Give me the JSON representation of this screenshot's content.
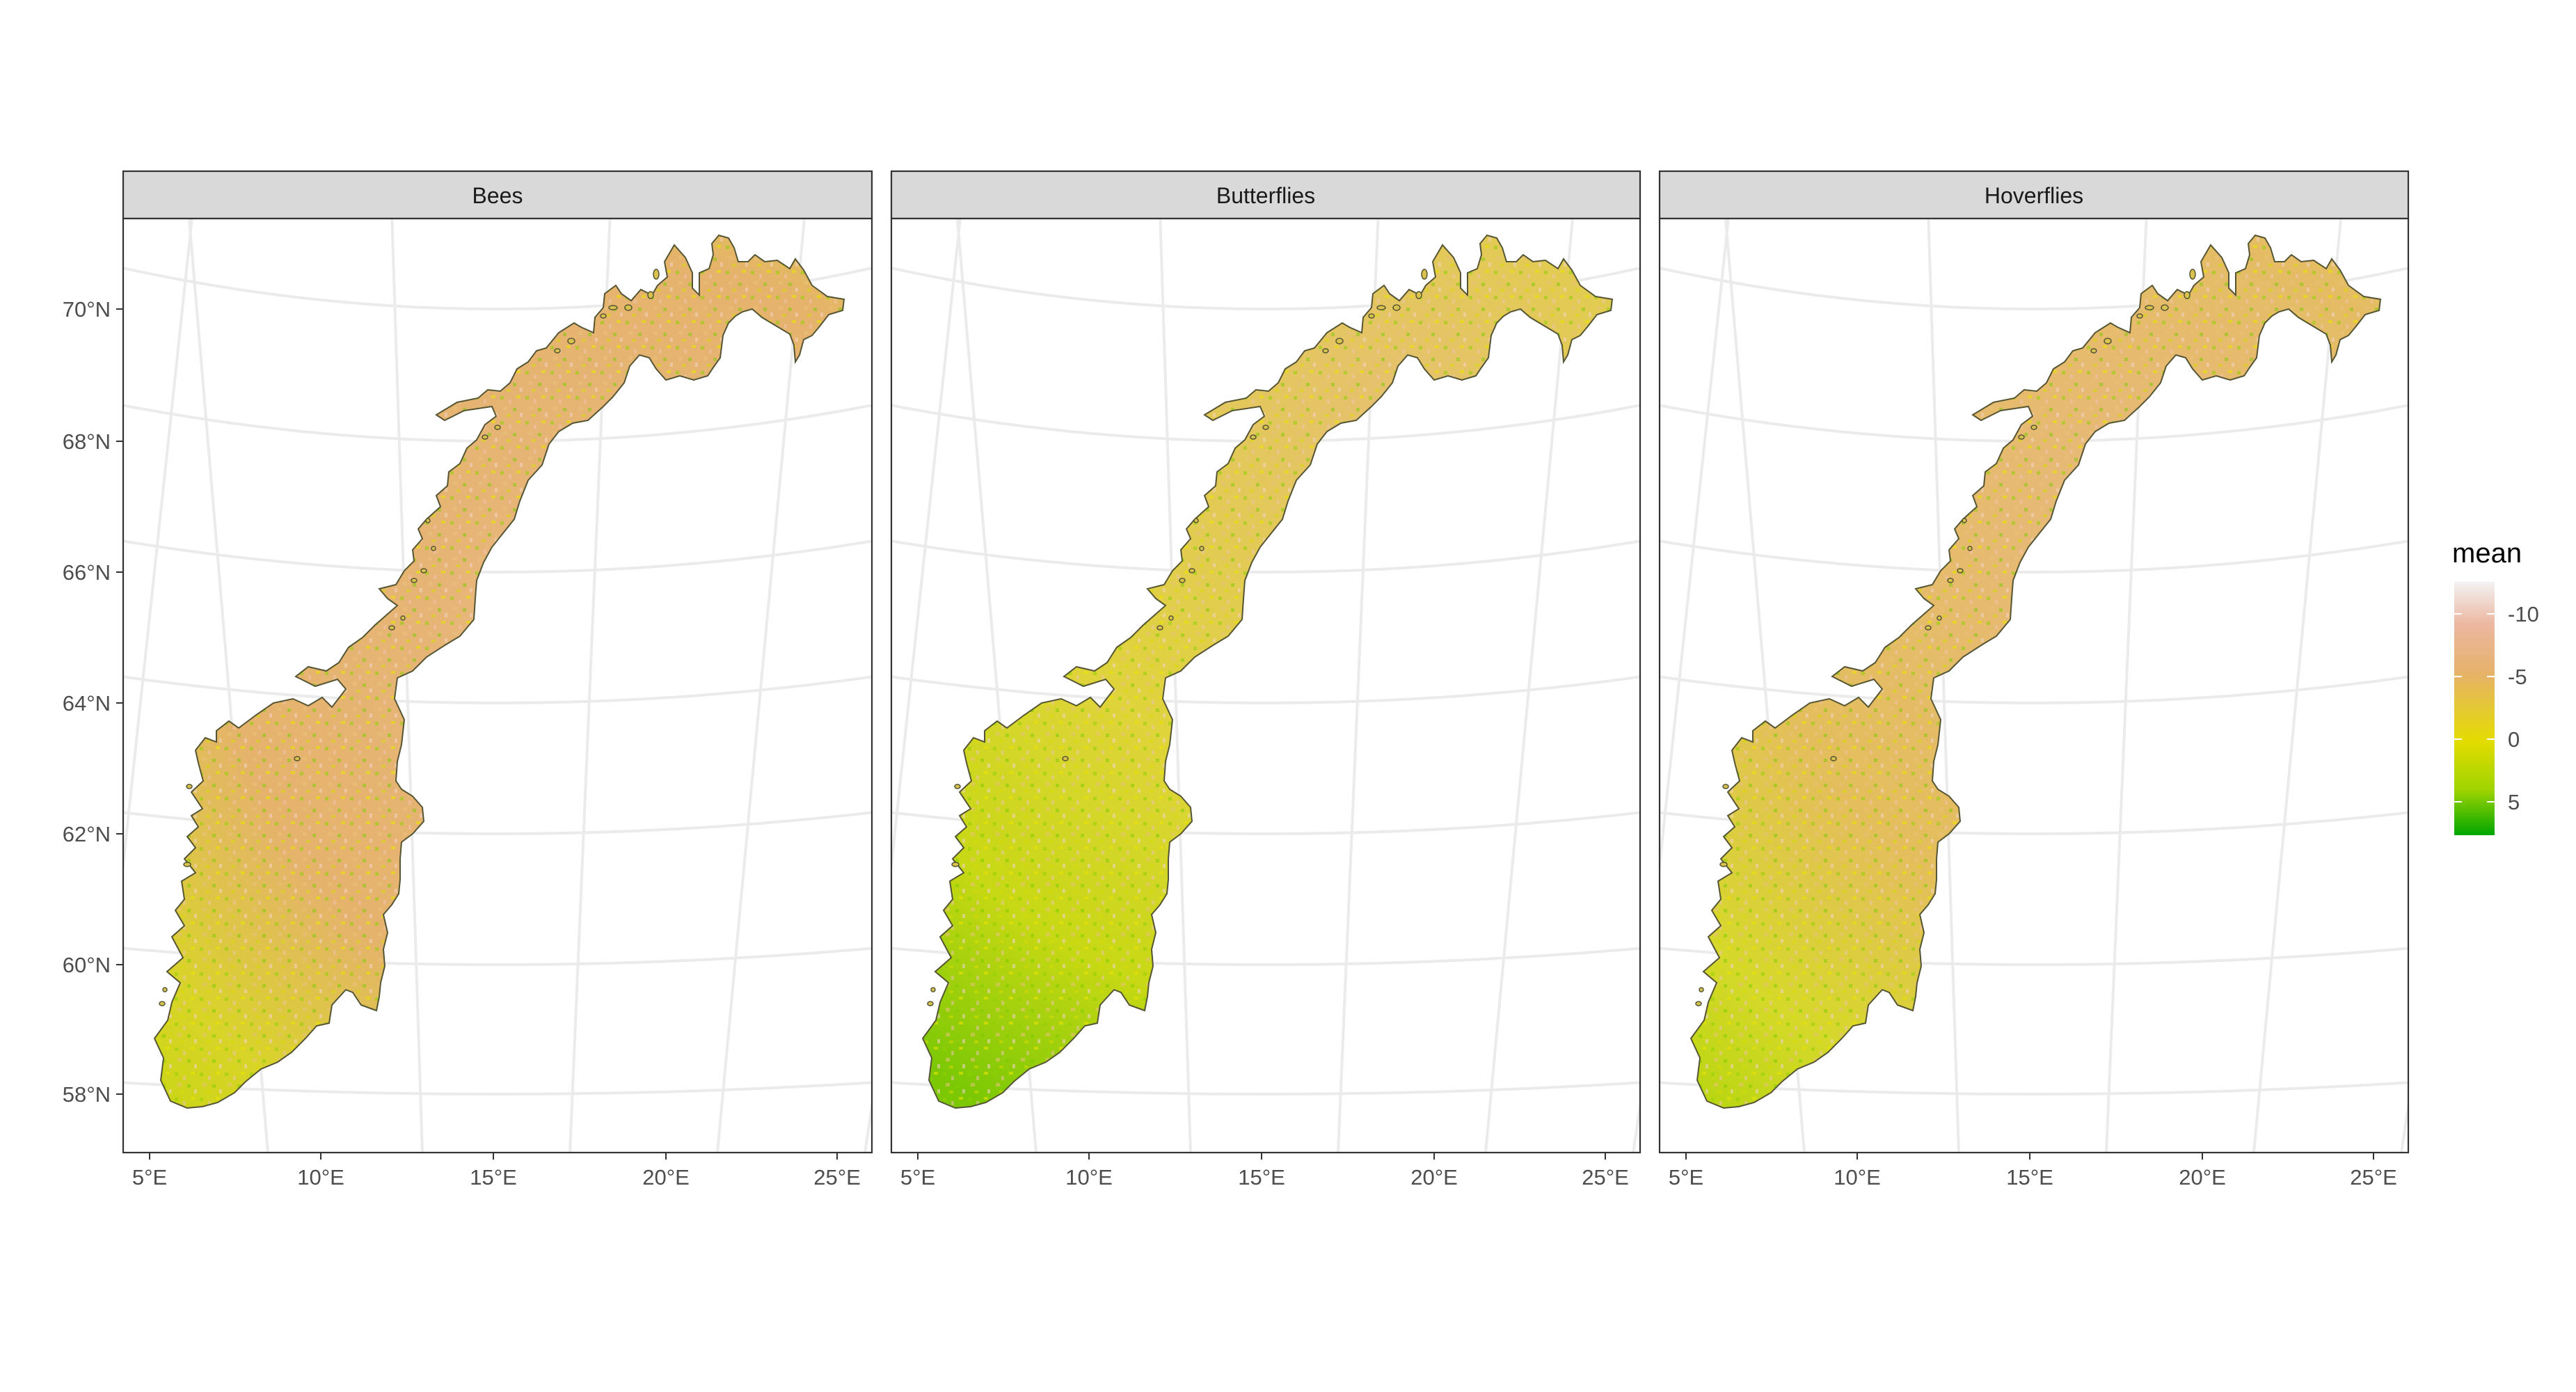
{
  "figure": {
    "panels": [
      {
        "id": "bees",
        "title": "Bees",
        "pattern": "bees"
      },
      {
        "id": "butterflies",
        "title": "Butterflies",
        "pattern": "butterflies"
      },
      {
        "id": "hoverflies",
        "title": "Hoverflies",
        "pattern": "hoverflies"
      }
    ],
    "y_tick_labels": [
      "70°N",
      "68°N",
      "66°N",
      "64°N",
      "62°N",
      "60°N",
      "58°N"
    ],
    "x_tick_labels": [
      "5°E",
      "10°E",
      "15°E",
      "20°E",
      "25°E"
    ],
    "legend": {
      "title": "mean",
      "tick_labels": [
        "-10",
        "-5",
        "0",
        "5"
      ],
      "colors": [
        "#f2f2f2",
        "#ecb7a0",
        "#e6b26a",
        "#e3dc00",
        "#9fd400",
        "#00a600"
      ]
    },
    "colors": {
      "land_low": "#00a600",
      "land_mid": "#e3dc00",
      "land_high": "#e6b26a",
      "land_top": "#ecb7a0",
      "grid": "#ebebeb",
      "strip": "#d9d9d9"
    }
  }
}
